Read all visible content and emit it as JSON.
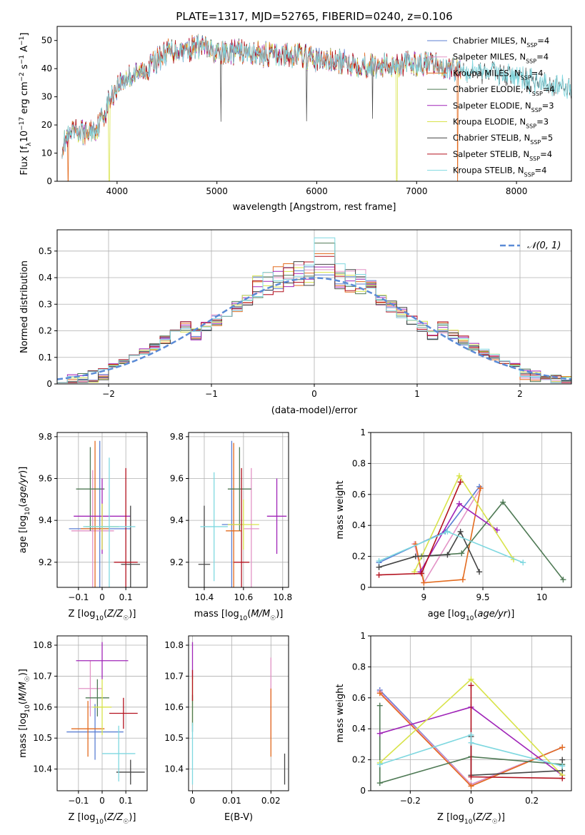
{
  "figure": {
    "title": "PLATE=1317, MJD=52765, FIBERID=0240, z=0.106"
  },
  "legend_models": [
    {
      "prefix": "Chabrier MILES, N",
      "n": "4",
      "color": "#5b7fd3"
    },
    {
      "prefix": "Salpeter MILES, N",
      "n": "4",
      "color": "#e393c6"
    },
    {
      "prefix": "Kroupa MILES, N",
      "n": "4",
      "color": "#e36b1f"
    },
    {
      "prefix": "Chabrier ELODIE, N",
      "n": "4",
      "color": "#4f7a55"
    },
    {
      "prefix": "Salpeter ELODIE, N",
      "n": "3",
      "color": "#a025b8"
    },
    {
      "prefix": "Kroupa ELODIE, N",
      "n": "3",
      "color": "#d8e34a"
    },
    {
      "prefix": "Chabrier STELIB, N",
      "n": "5",
      "color": "#444444"
    },
    {
      "prefix": "Salpeter STELIB, N",
      "n": "4",
      "color": "#b3121f"
    },
    {
      "prefix": "Kroupa STELIB, N",
      "n": "4",
      "color": "#7fd8e0"
    }
  ],
  "chart_data": [
    {
      "id": "spectrum",
      "type": "line",
      "xlabel": "wavelength [Angstrom, rest frame]",
      "ylabel_html": "Flux [f_λ10^-17 erg cm^-2 s^-1 A^-1]",
      "xlim": [
        3400,
        8550
      ],
      "ylim": [
        0,
        55
      ],
      "xticks": [
        4000,
        5000,
        6000,
        7000,
        8000
      ],
      "yticks": [
        0,
        10,
        20,
        30,
        40,
        50
      ],
      "spectrum_anchors_x": [
        3450,
        3500,
        3600,
        3700,
        3800,
        3850,
        3950,
        4000,
        4100,
        4200,
        4300,
        4400,
        4500,
        4700,
        4850,
        5000,
        5200,
        5500,
        5800,
        6000,
        6300,
        6600,
        7000,
        7400,
        7800,
        8200,
        8550
      ],
      "spectrum_anchors_y": [
        15,
        17,
        20,
        19,
        21,
        25,
        30,
        34,
        37,
        38,
        40,
        43,
        46,
        47,
        48,
        45,
        46,
        45,
        45,
        43,
        42,
        41,
        42,
        40,
        39,
        35,
        33
      ],
      "dropouts_x": [
        3510,
        3920,
        6800,
        7410
      ],
      "dropout_series": [
        2,
        5,
        5,
        2
      ],
      "spikes_x": [
        5040,
        5900,
        6560
      ]
    },
    {
      "id": "residual-histogram",
      "type": "line",
      "xlabel": "(data-model)/error",
      "ylabel": "Normed distribution",
      "xlim": [
        -2.5,
        2.5
      ],
      "ylim": [
        0,
        0.58
      ],
      "xticks": [
        -2,
        -1,
        0,
        1,
        2
      ],
      "yticks": [
        0,
        0.1,
        0.2,
        0.3,
        0.4,
        0.5
      ],
      "reference_label": "𝒩(0, 1)",
      "reference_color": "#5b8bd6",
      "bin_width": 0.1,
      "peak_values": [
        0.41,
        0.43,
        0.49,
        0.53,
        0.44,
        0.42,
        0.45,
        0.48,
        0.55,
        0.45,
        0.4,
        0.43
      ]
    },
    {
      "id": "age-vs-z",
      "type": "scatter",
      "xlabel": "Z [log10(Z/Z☉)]",
      "ylabel": "age [log10(age/yr)]",
      "xlim": [
        -0.19,
        0.19
      ],
      "ylim": [
        9.08,
        9.82
      ],
      "xticks": [
        -0.1,
        0.0,
        0.1
      ],
      "yticks": [
        9.2,
        9.4,
        9.6,
        9.8
      ],
      "points": [
        {
          "x": -0.01,
          "y": 9.36,
          "xerr": 0.13,
          "yerr": 0.42,
          "series": 0
        },
        {
          "x": -0.04,
          "y": 9.35,
          "xerr": 0.09,
          "yerr": 0.29,
          "series": 1
        },
        {
          "x": -0.03,
          "y": 9.36,
          "xerr": 0.06,
          "yerr": 0.42,
          "series": 2
        },
        {
          "x": -0.05,
          "y": 9.55,
          "xerr": 0.06,
          "yerr": 0.2,
          "series": 3
        },
        {
          "x": 0.0,
          "y": 9.42,
          "xerr": 0.12,
          "yerr": 0.18,
          "series": 4
        },
        {
          "x": 0.0,
          "y": 9.37,
          "xerr": 0.07,
          "yerr": 0.11,
          "series": 5
        },
        {
          "x": 0.12,
          "y": 9.19,
          "xerr": 0.04,
          "yerr": 0.28,
          "series": 6
        },
        {
          "x": 0.1,
          "y": 9.2,
          "xerr": 0.05,
          "yerr": 0.45,
          "series": 7
        },
        {
          "x": 0.03,
          "y": 9.37,
          "xerr": 0.11,
          "yerr": 0.33,
          "series": 8
        }
      ]
    },
    {
      "id": "age-vs-mass",
      "type": "scatter",
      "xlabel": "mass [log10(M/M☉)]",
      "ylabel": "",
      "xlim": [
        10.32,
        10.83
      ],
      "ylim": [
        9.08,
        9.82
      ],
      "xticks": [
        10.4,
        10.6,
        10.8
      ],
      "yticks": [
        9.2,
        9.4,
        9.6,
        9.8
      ],
      "points": [
        {
          "x": 10.54,
          "y": 9.38,
          "xerr": 0.05,
          "yerr": 0.4,
          "series": 0
        },
        {
          "x": 10.64,
          "y": 9.36,
          "xerr": 0.04,
          "yerr": 0.29,
          "series": 1
        },
        {
          "x": 10.55,
          "y": 9.35,
          "xerr": 0.04,
          "yerr": 0.42,
          "series": 2
        },
        {
          "x": 10.58,
          "y": 9.55,
          "xerr": 0.06,
          "yerr": 0.2,
          "series": 3
        },
        {
          "x": 10.77,
          "y": 9.42,
          "xerr": 0.05,
          "yerr": 0.18,
          "series": 4
        },
        {
          "x": 10.6,
          "y": 9.38,
          "xerr": 0.08,
          "yerr": 0.12,
          "series": 5
        },
        {
          "x": 10.4,
          "y": 9.19,
          "xerr": 0.03,
          "yerr": 0.28,
          "series": 6
        },
        {
          "x": 10.59,
          "y": 9.2,
          "xerr": 0.04,
          "yerr": 0.45,
          "series": 7
        },
        {
          "x": 10.45,
          "y": 9.37,
          "xerr": 0.07,
          "yerr": 0.26,
          "series": 8
        }
      ]
    },
    {
      "id": "mass-weight-vs-age",
      "type": "line",
      "xlabel": "age [log10(age/yr)]",
      "ylabel": "mass weight",
      "xlim": [
        8.55,
        10.25
      ],
      "ylim": [
        0,
        1.0
      ],
      "xticks": [
        9.0,
        9.5,
        10.0
      ],
      "yticks": [
        0,
        0.2,
        0.4,
        0.6,
        0.8,
        1.0
      ],
      "series": [
        {
          "x": [
            8.62,
            9.18,
            9.47
          ],
          "y": [
            0.16,
            0.36,
            0.65
          ],
          "color": 0
        },
        {
          "x": [
            8.92,
            9.0,
            9.48
          ],
          "y": [
            0.28,
            0.03,
            0.64
          ],
          "color": 1
        },
        {
          "x": [
            8.93,
            9.0,
            9.33,
            9.48
          ],
          "y": [
            0.28,
            0.03,
            0.05,
            0.64
          ],
          "color": 2
        },
        {
          "x": [
            8.98,
            9.32,
            9.67,
            10.18
          ],
          "y": [
            0.2,
            0.22,
            0.55,
            0.05
          ],
          "color": 3
        },
        {
          "x": [
            8.97,
            9.3,
            9.62
          ],
          "y": [
            0.1,
            0.54,
            0.37
          ],
          "color": 4
        },
        {
          "x": [
            8.92,
            9.3,
            9.76
          ],
          "y": [
            0.1,
            0.72,
            0.18
          ],
          "color": 5
        },
        {
          "x": [
            8.62,
            8.93,
            9.2,
            9.31,
            9.47
          ],
          "y": [
            0.13,
            0.2,
            0.21,
            0.36,
            0.1
          ],
          "color": 6
        },
        {
          "x": [
            8.62,
            8.98,
            9.31
          ],
          "y": [
            0.08,
            0.09,
            0.68
          ],
          "color": 7
        },
        {
          "x": [
            8.62,
            9.2,
            9.84
          ],
          "y": [
            0.17,
            0.36,
            0.16
          ],
          "color": 8
        }
      ]
    },
    {
      "id": "mass-vs-z",
      "type": "scatter",
      "xlabel": "Z [log10(Z/Z☉)]",
      "ylabel": "mass [log10(M/M☉)]",
      "xlim": [
        -0.19,
        0.19
      ],
      "ylim": [
        10.33,
        10.83
      ],
      "xticks": [
        -0.1,
        0.0,
        0.1
      ],
      "yticks": [
        10.4,
        10.5,
        10.6,
        10.7,
        10.8
      ],
      "points": [
        {
          "x": -0.03,
          "y": 10.52,
          "xerr": 0.12,
          "yerr": 0.09,
          "series": 0
        },
        {
          "x": -0.05,
          "y": 10.66,
          "xerr": 0.05,
          "yerr": 0.09,
          "series": 1
        },
        {
          "x": -0.06,
          "y": 10.53,
          "xerr": 0.07,
          "yerr": 0.09,
          "series": 2
        },
        {
          "x": -0.02,
          "y": 10.63,
          "xerr": 0.05,
          "yerr": 0.06,
          "series": 3
        },
        {
          "x": 0.0,
          "y": 10.75,
          "xerr": 0.11,
          "yerr": 0.06,
          "series": 4
        },
        {
          "x": 0.0,
          "y": 10.6,
          "xerr": 0.04,
          "yerr": 0.09,
          "series": 5
        },
        {
          "x": 0.12,
          "y": 10.39,
          "xerr": 0.06,
          "yerr": 0.04,
          "series": 6
        },
        {
          "x": 0.09,
          "y": 10.58,
          "xerr": 0.06,
          "yerr": 0.05,
          "series": 7
        },
        {
          "x": 0.07,
          "y": 10.45,
          "xerr": 0.07,
          "yerr": 0.09,
          "series": 8
        }
      ]
    },
    {
      "id": "mass-vs-ebv",
      "type": "scatter",
      "xlabel": "E(B-V)",
      "ylabel": "",
      "xlim": [
        -0.001,
        0.0245
      ],
      "ylim": [
        10.33,
        10.83
      ],
      "xticks": [
        0.0,
        0.01,
        0.02
      ],
      "yticks": [
        10.4,
        10.5,
        10.6,
        10.7,
        10.8
      ],
      "points": [
        {
          "x": 0.02,
          "y": 10.63,
          "xerr": 0,
          "yerr": 0.13,
          "series": 1
        },
        {
          "x": 0.02,
          "y": 10.55,
          "xerr": 0,
          "yerr": 0.11,
          "series": 2
        },
        {
          "x": 0.0,
          "y": 10.75,
          "xerr": 0,
          "yerr": 0.06,
          "series": 4
        },
        {
          "x": 0.0,
          "y": 10.62,
          "xerr": 0,
          "yerr": 0.08,
          "series": 5
        },
        {
          "x": 0.0,
          "y": 10.58,
          "xerr": 0,
          "yerr": 0.06,
          "series": 3
        },
        {
          "x": 0.0,
          "y": 10.45,
          "xerr": 0,
          "yerr": 0.1,
          "series": 8
        },
        {
          "x": 0.0,
          "y": 10.67,
          "xerr": 0,
          "yerr": 0.05,
          "series": 7
        },
        {
          "x": 0.0235,
          "y": 10.4,
          "xerr": 0,
          "yerr": 0.05,
          "series": 6
        }
      ]
    },
    {
      "id": "mass-weight-vs-z",
      "type": "line",
      "xlabel": "Z [log10(Z/Z☉)]",
      "ylabel": "mass weight",
      "xlim": [
        -0.33,
        0.33
      ],
      "ylim": [
        0,
        1.0
      ],
      "xticks": [
        -0.2,
        0.0,
        0.2
      ],
      "yticks": [
        0,
        0.2,
        0.4,
        0.6,
        0.8,
        1.0
      ],
      "series": [
        {
          "x": [
            -0.3,
            0.0,
            0.3
          ],
          "y": [
            0.65,
            0.04,
            0.28
          ],
          "color": 0
        },
        {
          "x": [
            -0.3,
            0.0,
            0.3
          ],
          "y": [
            0.64,
            0.04,
            0.28
          ],
          "color": 1
        },
        {
          "x": [
            -0.3,
            0.0,
            0.3
          ],
          "y": [
            0.63,
            0.03,
            0.28
          ],
          "color": 2
        },
        {
          "x": [
            -0.3,
            -0.3,
            0.0,
            0.3
          ],
          "y": [
            0.55,
            0.05,
            0.22,
            0.17
          ],
          "color": 3
        },
        {
          "x": [
            -0.3,
            0.0,
            0.3
          ],
          "y": [
            0.37,
            0.54,
            0.1
          ],
          "color": 4
        },
        {
          "x": [
            -0.3,
            0.0,
            0.3
          ],
          "y": [
            0.18,
            0.72,
            0.1
          ],
          "color": 5
        },
        {
          "x": [
            0.0,
            0.0,
            0.3,
            0.3
          ],
          "y": [
            0.35,
            0.1,
            0.13,
            0.2
          ],
          "color": 6
        },
        {
          "x": [
            0.0,
            0.0,
            0.3
          ],
          "y": [
            0.68,
            0.09,
            0.08
          ],
          "color": 7
        },
        {
          "x": [
            -0.3,
            0.0,
            0.0,
            0.3
          ],
          "y": [
            0.17,
            0.36,
            0.31,
            0.16
          ],
          "color": 8
        }
      ]
    }
  ]
}
